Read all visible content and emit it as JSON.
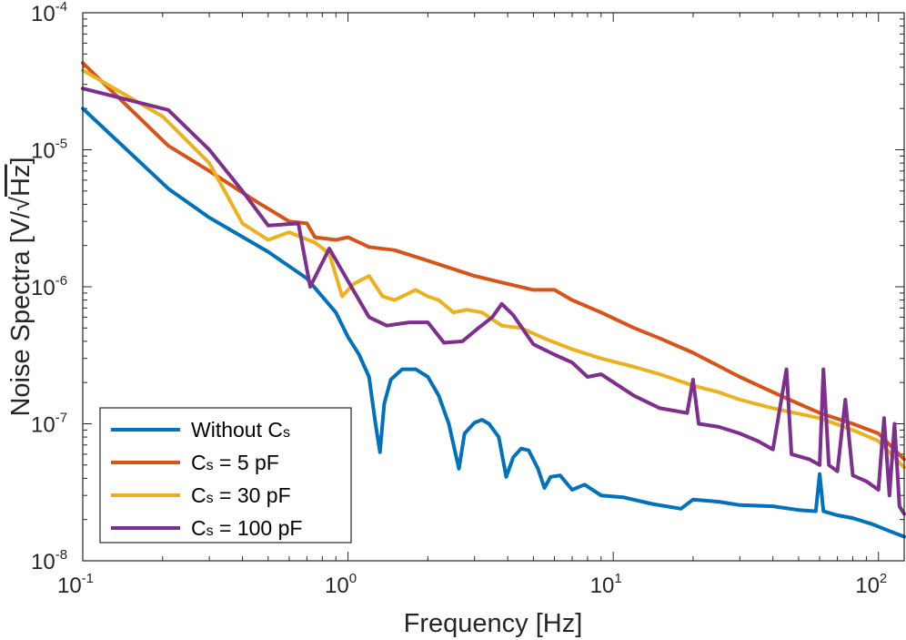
{
  "chart_data": {
    "type": "line",
    "xscale": "log",
    "yscale": "log",
    "xlabel": "Frequency [Hz]",
    "ylabel": "Noise Spectra [V/√Hz]",
    "ylabel_main": "Noise Spectra [V/",
    "ylabel_root": "√",
    "ylabel_unit": "Hz",
    "ylabel_close": "]",
    "xlim": [
      0.1,
      125
    ],
    "ylim": [
      1e-08,
      0.0001
    ],
    "xticks": [
      {
        "value": 0.1,
        "base": "10",
        "exp": "-1"
      },
      {
        "value": 1,
        "base": "10",
        "exp": "0"
      },
      {
        "value": 10,
        "base": "10",
        "exp": "1"
      },
      {
        "value": 100,
        "base": "10",
        "exp": "2"
      }
    ],
    "yticks": [
      {
        "value": 1e-08,
        "base": "10",
        "exp": "-8"
      },
      {
        "value": 1e-07,
        "base": "10",
        "exp": "-7"
      },
      {
        "value": 1e-06,
        "base": "10",
        "exp": "-6"
      },
      {
        "value": 1e-05,
        "base": "10",
        "exp": "-5"
      },
      {
        "value": 0.0001,
        "base": "10",
        "exp": "-4"
      }
    ],
    "legend_position": "bottom-left",
    "series": [
      {
        "name": "Without Cs",
        "legend_parts": [
          "Without C",
          "s",
          ""
        ],
        "color": "#0072BD",
        "points": [
          [
            0.1,
            2e-05
          ],
          [
            0.21,
            5.2e-06
          ],
          [
            0.3,
            3.2e-06
          ],
          [
            0.5,
            1.8e-06
          ],
          [
            0.7,
            1.15e-06
          ],
          [
            0.9,
            6.5e-07
          ],
          [
            1.0,
            4.3e-07
          ],
          [
            1.1,
            3.2e-07
          ],
          [
            1.2,
            2.2e-07
          ],
          [
            1.27,
            1e-07
          ],
          [
            1.32,
            6.2e-08
          ],
          [
            1.37,
            1.4e-07
          ],
          [
            1.45,
            2.1e-07
          ],
          [
            1.6,
            2.5e-07
          ],
          [
            1.8,
            2.5e-07
          ],
          [
            2.0,
            2.2e-07
          ],
          [
            2.2,
            1.6e-07
          ],
          [
            2.4,
            1e-07
          ],
          [
            2.62,
            4.7e-08
          ],
          [
            2.75,
            8.5e-08
          ],
          [
            3.0,
            1.02e-07
          ],
          [
            3.2,
            1.07e-07
          ],
          [
            3.4,
            1e-07
          ],
          [
            3.7,
            8e-08
          ],
          [
            3.95,
            4.1e-08
          ],
          [
            4.2,
            5.7e-08
          ],
          [
            4.5,
            6.6e-08
          ],
          [
            4.8,
            6.4e-08
          ],
          [
            5.2,
            4.7e-08
          ],
          [
            5.5,
            3.4e-08
          ],
          [
            5.8,
            4.1e-08
          ],
          [
            6.3,
            4.2e-08
          ],
          [
            7.0,
            3.3e-08
          ],
          [
            7.8,
            3.6e-08
          ],
          [
            9.0,
            3e-08
          ],
          [
            11,
            2.9e-08
          ],
          [
            14,
            2.6e-08
          ],
          [
            18,
            2.4e-08
          ],
          [
            20,
            2.8e-08
          ],
          [
            25,
            2.7e-08
          ],
          [
            30,
            2.55e-08
          ],
          [
            40,
            2.5e-08
          ],
          [
            50,
            2.35e-08
          ],
          [
            58,
            2.3e-08
          ],
          [
            60,
            4.3e-08
          ],
          [
            62,
            2.3e-08
          ],
          [
            70,
            2.15e-08
          ],
          [
            80,
            2.05e-08
          ],
          [
            95,
            1.85e-08
          ],
          [
            110,
            1.65e-08
          ],
          [
            125,
            1.5e-08
          ]
        ]
      },
      {
        "name": "Cs = 5 pF",
        "legend_parts": [
          "C",
          "s",
          " = 5 pF"
        ],
        "color": "#D95319",
        "points": [
          [
            0.1,
            4.3e-05
          ],
          [
            0.21,
            1.07e-05
          ],
          [
            0.3,
            7e-06
          ],
          [
            0.45,
            4.2e-06
          ],
          [
            0.6,
            3e-06
          ],
          [
            0.7,
            2.9e-06
          ],
          [
            0.75,
            2.3e-06
          ],
          [
            0.9,
            2.2e-06
          ],
          [
            1.0,
            2.3e-06
          ],
          [
            1.2,
            1.95e-06
          ],
          [
            1.5,
            1.85e-06
          ],
          [
            2.0,
            1.55e-06
          ],
          [
            3.0,
            1.2e-06
          ],
          [
            4.0,
            1.05e-06
          ],
          [
            5.0,
            9.5e-07
          ],
          [
            6.0,
            9.5e-07
          ],
          [
            7.0,
            8e-07
          ],
          [
            9.0,
            6.5e-07
          ],
          [
            12,
            5e-07
          ],
          [
            15,
            4.2e-07
          ],
          [
            20,
            3.3e-07
          ],
          [
            30,
            2.2e-07
          ],
          [
            40,
            1.7e-07
          ],
          [
            50,
            1.4e-07
          ],
          [
            60,
            1.2e-07
          ],
          [
            80,
            1e-07
          ],
          [
            100,
            8.5e-08
          ],
          [
            125,
            5.5e-08
          ]
        ]
      },
      {
        "name": "Cs = 30 pF",
        "legend_parts": [
          "C",
          "s",
          " = 30 pF"
        ],
        "color": "#EDB120",
        "points": [
          [
            0.1,
            3.8e-05
          ],
          [
            0.2,
            1.75e-05
          ],
          [
            0.3,
            8e-06
          ],
          [
            0.4,
            2.9e-06
          ],
          [
            0.5,
            2.2e-06
          ],
          [
            0.6,
            2.5e-06
          ],
          [
            0.75,
            2.1e-06
          ],
          [
            0.85,
            1.75e-06
          ],
          [
            0.95,
            8.5e-07
          ],
          [
            1.05,
            1.05e-06
          ],
          [
            1.2,
            1.2e-06
          ],
          [
            1.35,
            8.5e-07
          ],
          [
            1.5,
            8e-07
          ],
          [
            1.8,
            9.5e-07
          ],
          [
            2.0,
            8.5e-07
          ],
          [
            2.2,
            8e-07
          ],
          [
            2.5,
            6.5e-07
          ],
          [
            2.8,
            6.8e-07
          ],
          [
            3.2,
            6.5e-07
          ],
          [
            3.8,
            5.2e-07
          ],
          [
            4.5,
            5e-07
          ],
          [
            5.5,
            4.2e-07
          ],
          [
            7.0,
            3.5e-07
          ],
          [
            9.0,
            3e-07
          ],
          [
            12,
            2.6e-07
          ],
          [
            15,
            2.3e-07
          ],
          [
            20,
            1.9e-07
          ],
          [
            25,
            1.7e-07
          ],
          [
            30,
            1.5e-07
          ],
          [
            40,
            1.3e-07
          ],
          [
            60,
            1.1e-07
          ],
          [
            80,
            9e-08
          ],
          [
            100,
            7.5e-08
          ],
          [
            125,
            4.8e-08
          ]
        ]
      },
      {
        "name": "Cs = 100 pF",
        "legend_parts": [
          "C",
          "s",
          " = 100 pF"
        ],
        "color": "#7E2F8E",
        "points": [
          [
            0.1,
            2.8e-05
          ],
          [
            0.21,
            1.95e-05
          ],
          [
            0.3,
            1e-05
          ],
          [
            0.4,
            5e-06
          ],
          [
            0.5,
            2.8e-06
          ],
          [
            0.65,
            2.9e-06
          ],
          [
            0.72,
            1e-06
          ],
          [
            0.85,
            1.9e-06
          ],
          [
            1.0,
            1.1e-06
          ],
          [
            1.2,
            6e-07
          ],
          [
            1.4,
            5.2e-07
          ],
          [
            1.7,
            5.5e-07
          ],
          [
            2.0,
            5.5e-07
          ],
          [
            2.3,
            3.9e-07
          ],
          [
            2.7,
            4e-07
          ],
          [
            3.1,
            5e-07
          ],
          [
            3.5,
            6e-07
          ],
          [
            3.8,
            7.5e-07
          ],
          [
            4.2,
            6.2e-07
          ],
          [
            5.0,
            3.8e-07
          ],
          [
            6.0,
            3.2e-07
          ],
          [
            7.0,
            2.8e-07
          ],
          [
            8.0,
            2.2e-07
          ],
          [
            9.0,
            2.3e-07
          ],
          [
            12,
            1.6e-07
          ],
          [
            15,
            1.3e-07
          ],
          [
            19,
            1.2e-07
          ],
          [
            20,
            2.1e-07
          ],
          [
            21,
            1e-07
          ],
          [
            25,
            9.5e-08
          ],
          [
            30,
            8.5e-08
          ],
          [
            35,
            7.5e-08
          ],
          [
            40,
            6.5e-08
          ],
          [
            45,
            2.5e-07
          ],
          [
            47,
            6e-08
          ],
          [
            55,
            5.5e-08
          ],
          [
            60,
            5e-08
          ],
          [
            62,
            2.5e-07
          ],
          [
            65,
            5e-08
          ],
          [
            70,
            4.5e-08
          ],
          [
            75,
            1.5e-07
          ],
          [
            80,
            4.2e-08
          ],
          [
            90,
            3.8e-08
          ],
          [
            100,
            3.3e-08
          ],
          [
            105,
            1.1e-07
          ],
          [
            110,
            3e-08
          ],
          [
            115,
            1e-07
          ],
          [
            120,
            2.5e-08
          ],
          [
            125,
            2.2e-08
          ]
        ]
      }
    ]
  }
}
